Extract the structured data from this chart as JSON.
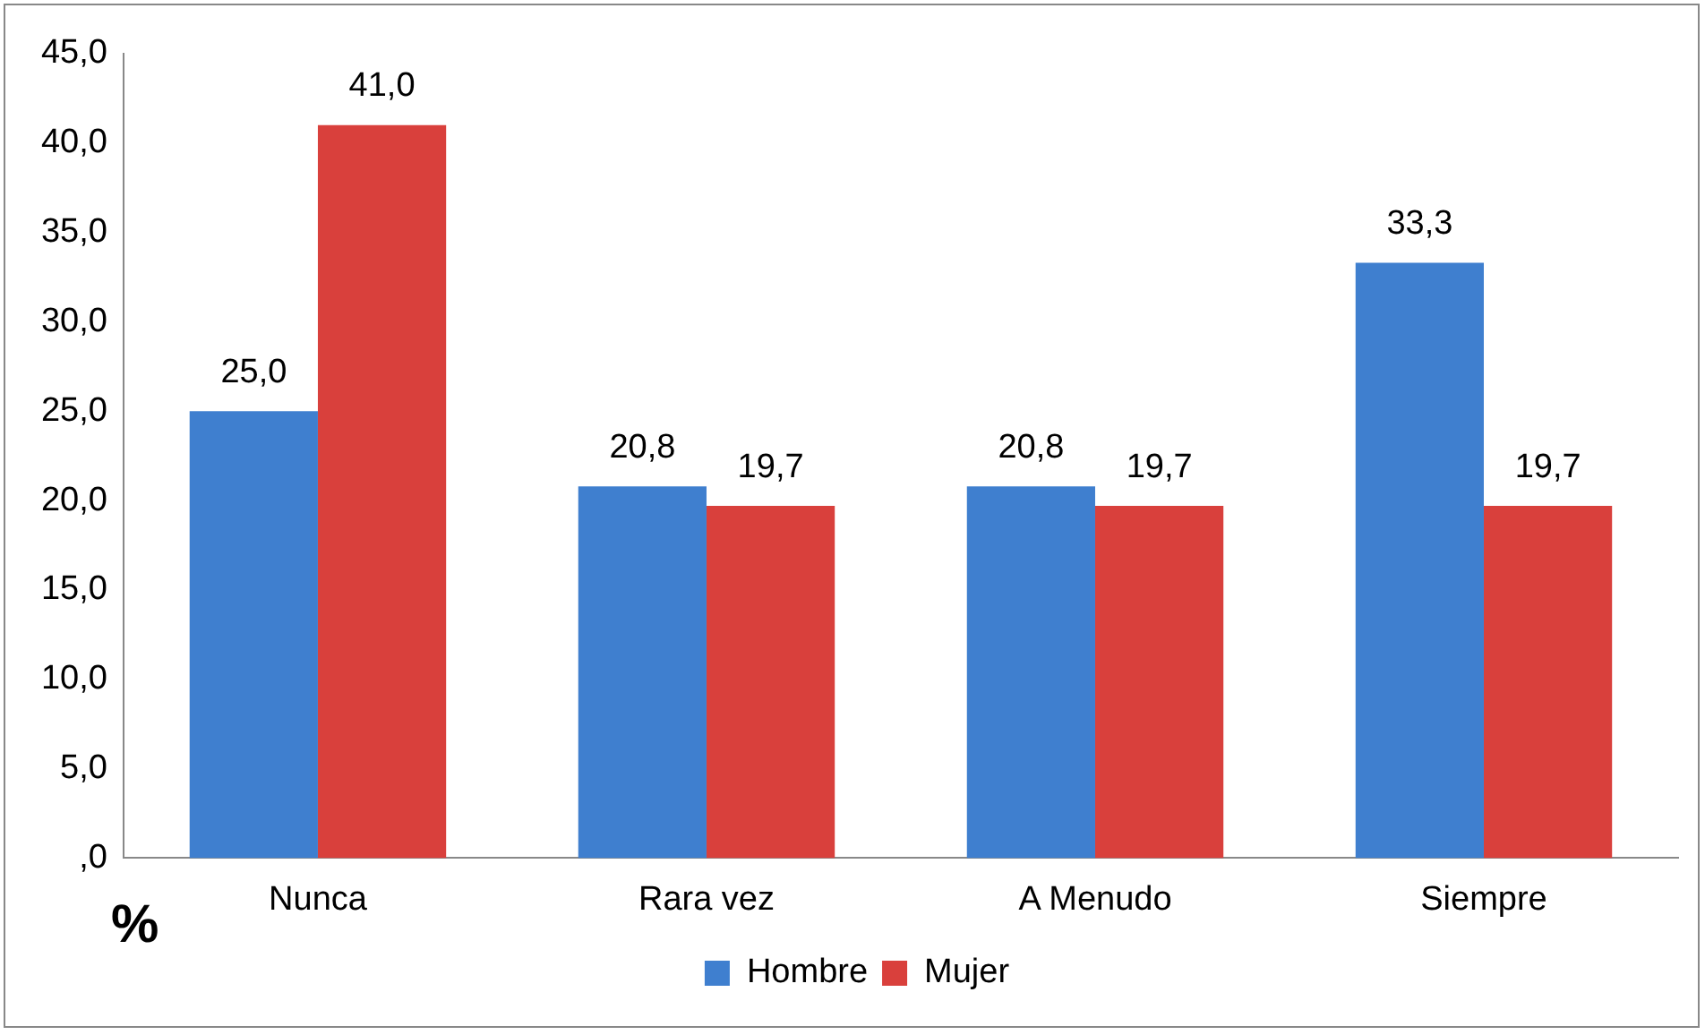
{
  "chart_data": {
    "type": "bar",
    "annotations": [
      "%"
    ],
    "categories": [
      "Nunca",
      "Rara vez",
      "A Menudo",
      "Siempre"
    ],
    "series": [
      {
        "name": "Hombre",
        "color": "#3f7fcf",
        "values": [
          25.0,
          20.8,
          20.8,
          33.3
        ],
        "value_labels": [
          "25,0",
          "20,8",
          "20,8",
          "33,3"
        ]
      },
      {
        "name": "Mujer",
        "color": "#d9403c",
        "values": [
          41.0,
          19.7,
          19.7,
          19.7
        ],
        "value_labels": [
          "41,0",
          "19,7",
          "19,7",
          "19,7"
        ]
      }
    ],
    "ylim": [
      0,
      45
    ],
    "yticks": [
      {
        "value": 0,
        "label": ",0"
      },
      {
        "value": 5,
        "label": "5,0"
      },
      {
        "value": 10,
        "label": "10,0"
      },
      {
        "value": 15,
        "label": "15,0"
      },
      {
        "value": 20,
        "label": "20,0"
      },
      {
        "value": 25,
        "label": "25,0"
      },
      {
        "value": 30,
        "label": "30,0"
      },
      {
        "value": 35,
        "label": "35,0"
      },
      {
        "value": 40,
        "label": "40,0"
      },
      {
        "value": 45,
        "label": "45,0"
      }
    ],
    "grid": false,
    "legend": "bottom"
  }
}
